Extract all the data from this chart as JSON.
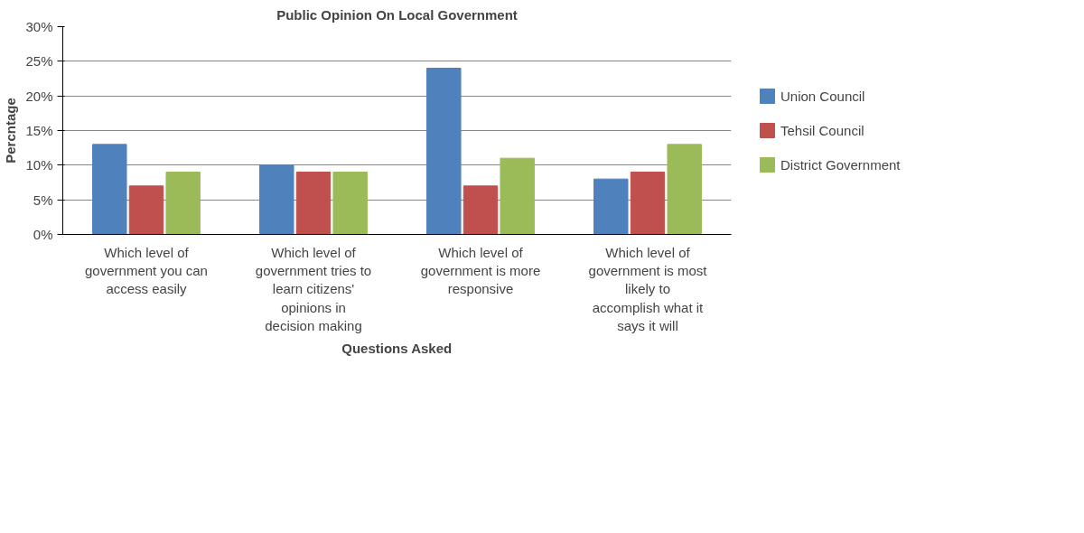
{
  "chart_data": {
    "type": "bar",
    "title": "Public Opinion On Local Government",
    "xlabel": "Questions Asked",
    "ylabel": "Percntage",
    "categories": [
      "Which level of government you can access easily",
      "Which level of government tries to learn citizens' opinions in decision making",
      "Which level of government is more responsive",
      "Which level of government is most likely to accomplish what it says it will"
    ],
    "series": [
      {
        "name": "Union Council",
        "color": "#4f81bd",
        "values": [
          13,
          10,
          24,
          8
        ]
      },
      {
        "name": "Tehsil Council",
        "color": "#c0504d",
        "values": [
          7,
          9,
          7,
          9
        ]
      },
      {
        "name": "District Government",
        "color": "#9bbb59",
        "values": [
          9,
          9,
          11,
          13
        ]
      }
    ],
    "ylim": [
      0,
      30
    ],
    "yticks": [
      {
        "value": 0,
        "label": "0%"
      },
      {
        "value": 5,
        "label": "5%"
      },
      {
        "value": 10,
        "label": "10%"
      },
      {
        "value": 15,
        "label": "15%"
      },
      {
        "value": 20,
        "label": "20%"
      },
      {
        "value": 25,
        "label": "25%"
      },
      {
        "value": 30,
        "label": "30%"
      }
    ],
    "grid": "y",
    "legend": "right"
  }
}
